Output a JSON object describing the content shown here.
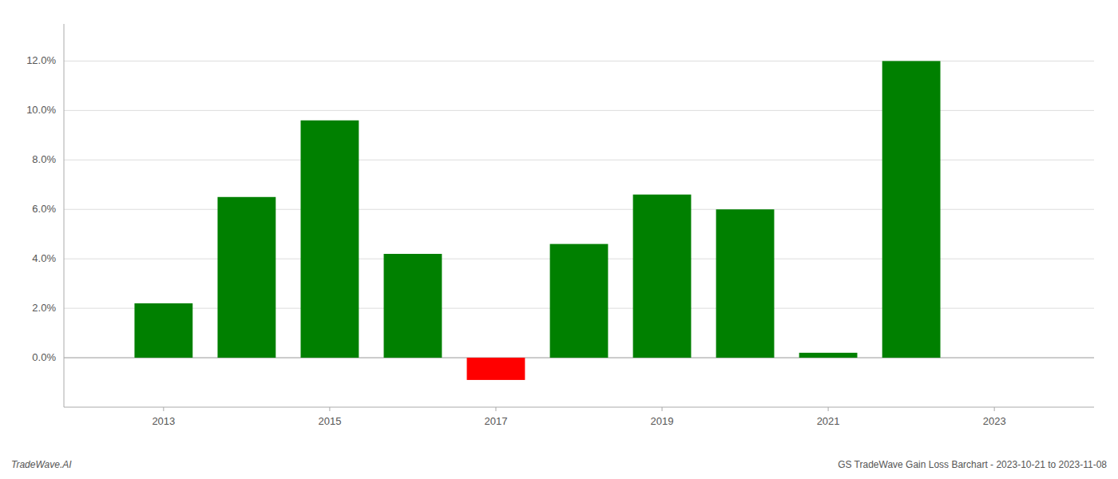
{
  "chart_data": {
    "type": "bar",
    "title": "GS TradeWave Gain Loss Barchart - 2023-10-21 to 2023-11-08",
    "annotations": [
      "TradeWave.AI"
    ],
    "x": [
      2013,
      2014,
      2015,
      2016,
      2017,
      2018,
      2019,
      2020,
      2021,
      2022
    ],
    "values": [
      0.022,
      0.065,
      0.096,
      0.042,
      -0.009,
      0.046,
      0.066,
      0.06,
      0.002,
      0.12
    ],
    "colors": [
      "#008000",
      "#008000",
      "#008000",
      "#008000",
      "#ff0000",
      "#008000",
      "#008000",
      "#008000",
      "#008000",
      "#008000"
    ],
    "xlim": [
      2011.8,
      2024.2
    ],
    "xticks": [
      2013,
      2015,
      2017,
      2019,
      2021,
      2023
    ],
    "ylim": [
      -0.02,
      0.135
    ],
    "yticks": [
      {
        "value": 0.0,
        "label": "0.0%"
      },
      {
        "value": 0.02,
        "label": "2.0%"
      },
      {
        "value": 0.04,
        "label": "4.0%"
      },
      {
        "value": 0.06,
        "label": "6.0%"
      },
      {
        "value": 0.08,
        "label": "8.0%"
      },
      {
        "value": 0.1,
        "label": "10.0%"
      },
      {
        "value": 0.12,
        "label": "12.0%"
      }
    ],
    "grid": true
  }
}
